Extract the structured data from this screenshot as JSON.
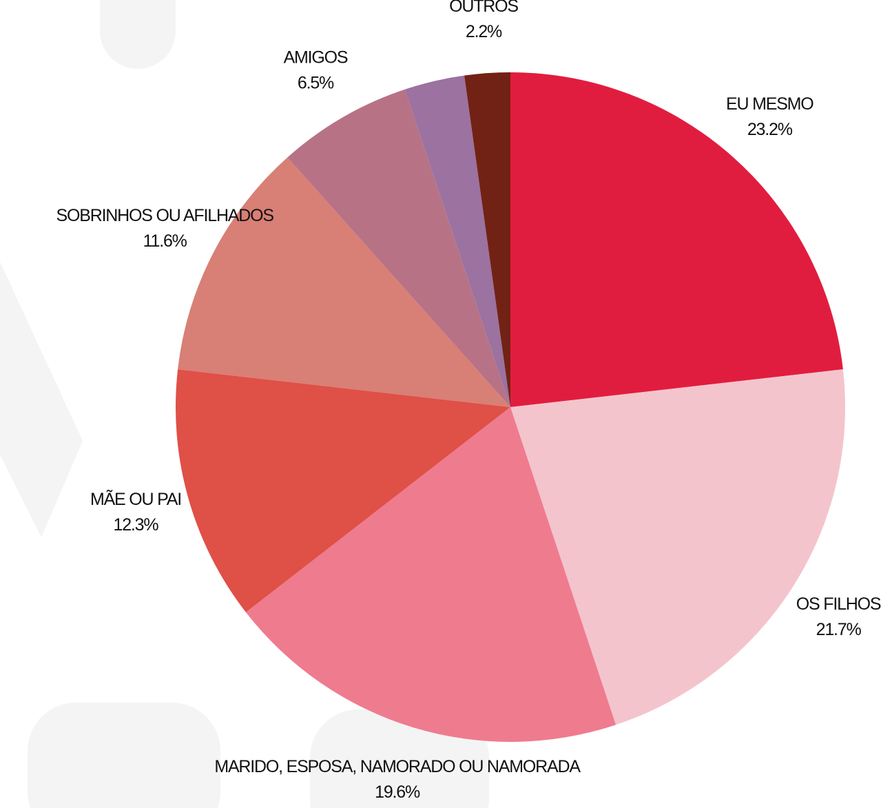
{
  "chart_data": {
    "type": "pie",
    "categories": [
      "EU MESMO",
      "OS FILHOS",
      "MARIDO, ESPOSA, NAMORADO OU NAMORADA",
      "MÃE OU PAI",
      "SOBRINHOS OU AFILHADOS",
      "AMIGOS",
      null,
      "OUTROS"
    ],
    "values": [
      23.2,
      21.7,
      19.6,
      12.3,
      11.6,
      6.5,
      2.9,
      2.2
    ],
    "value_labels": [
      "23.2%",
      "21.7%",
      "19.6%",
      "12.3%",
      "11.6%",
      "6.5%",
      null,
      "2.2%"
    ],
    "colors": [
      "#e11d3f",
      "#f4c4cc",
      "#ef7b8f",
      "#df5047",
      "#d87f76",
      "#b87286",
      "#9b72a0",
      "#722214"
    ]
  }
}
